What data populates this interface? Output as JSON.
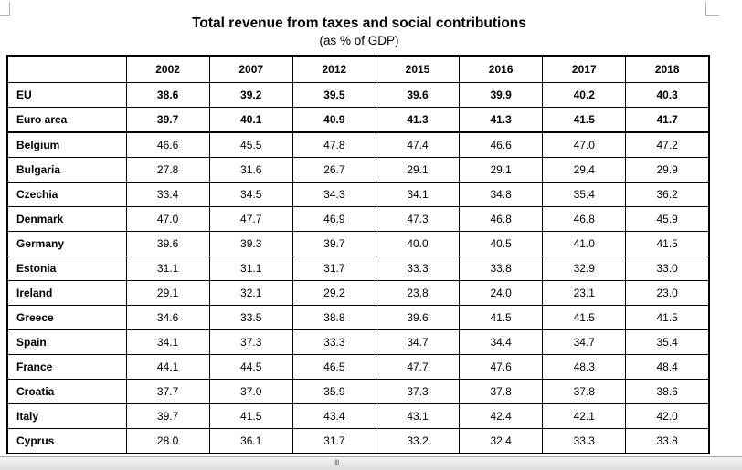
{
  "document": {
    "title": "Total revenue from taxes and social contributions",
    "subtitle": "(as % of GDP)"
  },
  "table": {
    "columns": [
      "",
      "2002",
      "2007",
      "2012",
      "2015",
      "2016",
      "2017",
      "2018"
    ],
    "rows": [
      {
        "label": "EU",
        "values": [
          "38.6",
          "39.2",
          "39.5",
          "39.6",
          "39.9",
          "40.2",
          "40.3"
        ]
      },
      {
        "label": "Euro area",
        "values": [
          "39.7",
          "40.1",
          "40.9",
          "41.3",
          "41.3",
          "41.5",
          "41.7"
        ]
      },
      {
        "label": "Belgium",
        "values": [
          "46.6",
          "45.5",
          "47.8",
          "47.4",
          "46.6",
          "47.0",
          "47.2"
        ]
      },
      {
        "label": "Bulgaria",
        "values": [
          "27.8",
          "31.6",
          "26.7",
          "29.1",
          "29.1",
          "29.4",
          "29.9"
        ]
      },
      {
        "label": "Czechia",
        "values": [
          "33.4",
          "34.5",
          "34.3",
          "34.1",
          "34.8",
          "35.4",
          "36.2"
        ]
      },
      {
        "label": "Denmark",
        "values": [
          "47.0",
          "47.7",
          "46.9",
          "47.3",
          "46.8",
          "46.8",
          "45.9"
        ]
      },
      {
        "label": "Germany",
        "values": [
          "39.6",
          "39.3",
          "39.7",
          "40.0",
          "40.5",
          "41.0",
          "41.5"
        ]
      },
      {
        "label": "Estonia",
        "values": [
          "31.1",
          "31.1",
          "31.7",
          "33.3",
          "33.8",
          "32.9",
          "33.0"
        ]
      },
      {
        "label": "Ireland",
        "values": [
          "29.1",
          "32.1",
          "29.2",
          "23.8",
          "24.0",
          "23.1",
          "23.0"
        ]
      },
      {
        "label": "Greece",
        "values": [
          "34.6",
          "33.5",
          "38.8",
          "39.6",
          "41.5",
          "41.5",
          "41.5"
        ]
      },
      {
        "label": "Spain",
        "values": [
          "34.1",
          "37.3",
          "33.3",
          "34.7",
          "34.4",
          "34.7",
          "35.4"
        ]
      },
      {
        "label": "France",
        "values": [
          "44.1",
          "44.5",
          "46.5",
          "47.7",
          "47.6",
          "48.3",
          "48.4"
        ]
      },
      {
        "label": "Croatia",
        "values": [
          "37.7",
          "37.0",
          "35.9",
          "37.3",
          "37.8",
          "37.8",
          "38.6"
        ]
      },
      {
        "label": "Italy",
        "values": [
          "39.7",
          "41.5",
          "43.4",
          "43.1",
          "42.4",
          "42.1",
          "42.0"
        ]
      },
      {
        "label": "Cyprus",
        "values": [
          "28.0",
          "36.1",
          "31.7",
          "33.2",
          "32.4",
          "33.3",
          "33.8"
        ]
      }
    ]
  },
  "scrollbar": {
    "grip": "III"
  }
}
